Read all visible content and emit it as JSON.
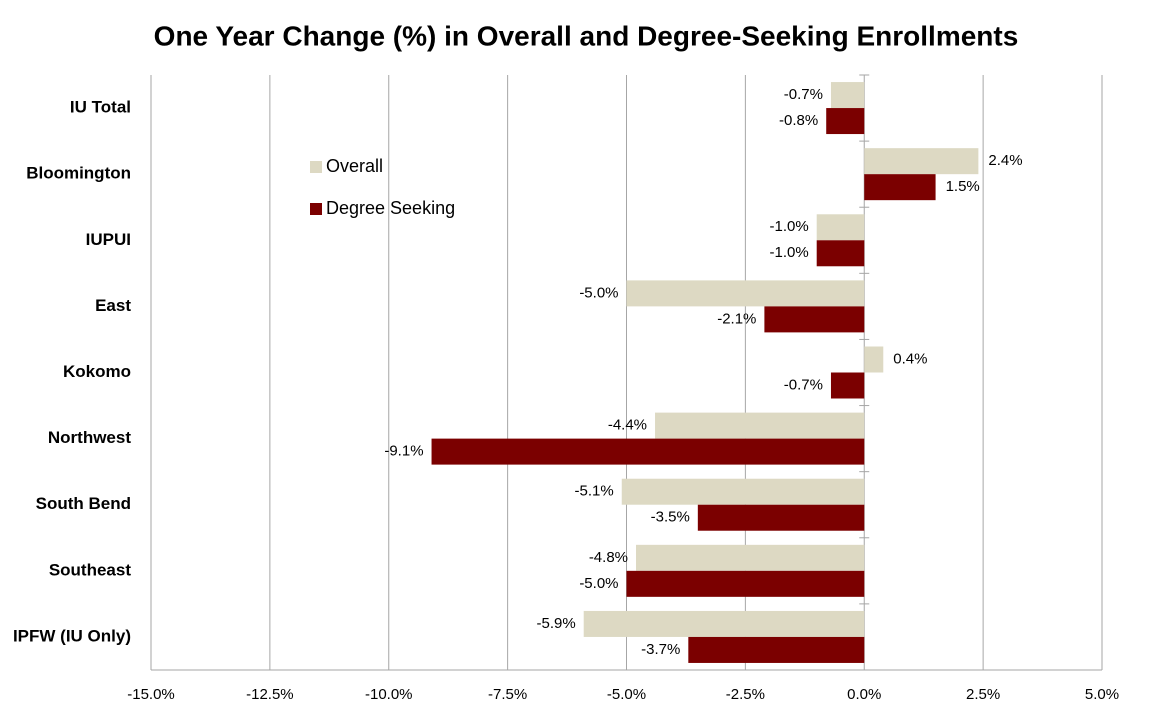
{
  "chart_data": {
    "type": "hbar",
    "title": "One Year Change (%) in Overall and Degree-Seeking Enrollments",
    "categories": [
      "IU Total",
      "Bloomington",
      "IUPUI",
      "East",
      "Kokomo",
      "Northwest",
      "South Bend",
      "Southeast",
      "IPFW (IU Only)"
    ],
    "series": [
      {
        "name": "Overall",
        "color": "#ddd9c3",
        "values": [
          -0.7,
          2.4,
          -1.0,
          -5.0,
          0.4,
          -4.4,
          -5.1,
          -4.8,
          -5.9
        ],
        "value_labels": [
          "-0.7%",
          "2.4%",
          "-1.0%",
          "-5.0%",
          "0.4%",
          "-4.4%",
          "-5.1%",
          "-4.8%",
          "-5.9%"
        ]
      },
      {
        "name": "Degree Seeking",
        "color": "#7b0000",
        "values": [
          -0.8,
          1.5,
          -1.0,
          -2.1,
          -0.7,
          -9.1,
          -3.5,
          -5.0,
          -3.7
        ],
        "value_labels": [
          "-0.8%",
          "1.5%",
          "-1.0%",
          "-2.1%",
          "-0.7%",
          "-9.1%",
          "-3.5%",
          "-5.0%",
          "-3.7%"
        ]
      }
    ],
    "xlim": [
      -15,
      5
    ],
    "xticks": [
      {
        "value": -15,
        "label": "-15.0%"
      },
      {
        "value": -12.5,
        "label": "-12.5%"
      },
      {
        "value": -10,
        "label": "-10.0%"
      },
      {
        "value": -7.5,
        "label": "-7.5%"
      },
      {
        "value": -5,
        "label": "-5.0%"
      },
      {
        "value": -2.5,
        "label": "-2.5%"
      },
      {
        "value": 0,
        "label": "0.0%"
      },
      {
        "value": 2.5,
        "label": "2.5%"
      },
      {
        "value": 5,
        "label": "5.0%"
      }
    ],
    "grid": true,
    "legend": "upper left"
  }
}
